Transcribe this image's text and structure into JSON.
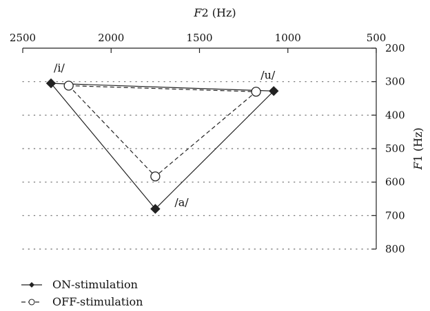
{
  "chart_data": {
    "type": "scatter",
    "title": "",
    "xlabel": {
      "var": "F",
      "sub": "2",
      "unit": " (Hz)"
    },
    "ylabel": {
      "var": "F",
      "sub": "1",
      "unit": " (Hz)"
    },
    "x_axis": {
      "position": "top",
      "reversed": true,
      "range": [
        2500,
        500
      ],
      "ticks": [
        2500,
        2000,
        1500,
        1000,
        500
      ]
    },
    "y_axis": {
      "position": "right",
      "reversed": true,
      "range": [
        200,
        800
      ],
      "ticks": [
        200,
        300,
        400,
        500,
        600,
        700,
        800
      ]
    },
    "grid": {
      "horizontal": "dotted",
      "vertical": "none"
    },
    "legend_position": "bottom-left",
    "series": [
      {
        "name": "ON-stimulation",
        "marker": "filled-diamond",
        "line": "solid",
        "closed": true,
        "points": [
          {
            "label": "/i/",
            "f2": 2340,
            "f1": 305
          },
          {
            "label": "/u/",
            "f2": 1080,
            "f1": 328
          },
          {
            "label": "/a/",
            "f2": 1750,
            "f1": 680
          }
        ]
      },
      {
        "name": "OFF-stimulation",
        "marker": "open-circle",
        "line": "dashed",
        "closed": true,
        "points": [
          {
            "label": "/i/",
            "f2": 2240,
            "f1": 312
          },
          {
            "label": "/u/",
            "f2": 1180,
            "f1": 330
          },
          {
            "label": "/a/",
            "f2": 1750,
            "f1": 583
          }
        ]
      }
    ]
  }
}
